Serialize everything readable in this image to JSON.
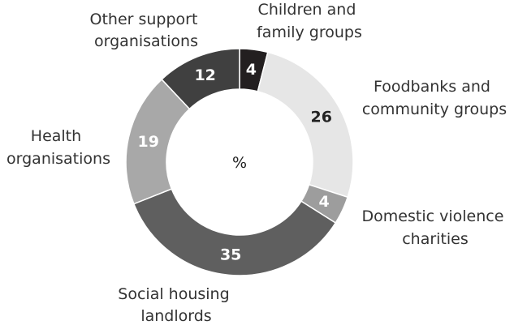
{
  "chart_data": {
    "type": "pie",
    "center_label": "%",
    "categories": [
      "Children and family groups",
      "Foodbanks and community groups",
      "Domestic violence charities",
      "Social housing landlords",
      "Health organisations",
      "Other support organisations"
    ],
    "values": [
      4,
      26,
      4,
      35,
      19,
      12
    ],
    "category_lines": [
      [
        "Children and",
        "family groups"
      ],
      [
        "Foodbanks and",
        "community groups"
      ],
      [
        "Domestic violence",
        "charities"
      ],
      [
        "Social housing",
        "landlords"
      ],
      [
        "Health",
        "organisations"
      ],
      [
        "Other support",
        "organisations"
      ]
    ],
    "value_labels": [
      "4",
      "26",
      "4",
      "35",
      "19",
      "12"
    ],
    "colors": [
      "#231f20",
      "#e6e6e6",
      "#9d9d9d",
      "#5f5f5f",
      "#a8a8a8",
      "#404040"
    ],
    "value_label_colors": [
      "#ffffff",
      "#222222",
      "#ffffff",
      "#ffffff",
      "#ffffff",
      "#ffffff"
    ]
  }
}
